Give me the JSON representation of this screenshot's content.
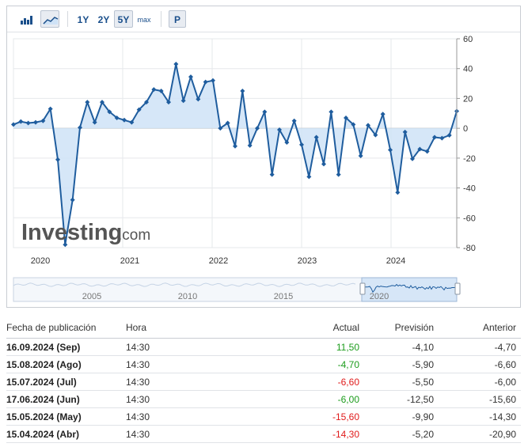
{
  "toolbar": {
    "ranges": [
      "1Y",
      "2Y",
      "5Y",
      "max"
    ],
    "active_range": "5Y",
    "p_button": "P",
    "bar_icon": "bar-chart-icon",
    "line_icon": "area-chart-icon"
  },
  "watermark": {
    "brand": "Investing",
    "suffix": ".com"
  },
  "colors": {
    "line": "#1f5d9e",
    "fill": "#cfe3f7",
    "positive": "#1c9c1c",
    "negative": "#e01b1b",
    "grid": "#e6e8eb"
  },
  "chart_data": {
    "type": "area",
    "xlabels": [
      "2020",
      "2021",
      "2022",
      "2023",
      "2024"
    ],
    "ylim": [
      -80,
      60
    ],
    "yticks": [
      60,
      40,
      20,
      0,
      -20,
      -40,
      -60,
      -80
    ],
    "series": [
      {
        "values": [
          2.5,
          4.5,
          3.5,
          4,
          5,
          13,
          -21,
          -78,
          -48,
          0.5,
          17.5,
          4,
          17.5,
          11,
          7,
          5.5,
          4,
          12.5,
          17.5,
          26,
          25,
          17.5,
          43,
          18.5,
          34.5,
          19.5,
          31,
          32,
          0,
          3.5,
          -12,
          25,
          -11.5,
          0,
          11,
          -31,
          -1,
          -9.5,
          5,
          -11,
          -32.5,
          -6,
          -24,
          11,
          -31,
          7,
          2.5,
          -18.5,
          2,
          -4.5,
          9.5,
          -14.5,
          -43,
          -2.5,
          -20.5,
          -14,
          -15.5,
          -6,
          -6.6,
          -4.7,
          11.5
        ]
      }
    ],
    "navigator": {
      "labels": [
        "2005",
        "2010",
        "2015",
        "2020"
      ]
    }
  },
  "table": {
    "headers": {
      "date": "Fecha de publicación",
      "time": "Hora",
      "actual": "Actual",
      "forecast": "Previsión",
      "previous": "Anterior"
    },
    "rows": [
      {
        "date": "16.09.2024 (Sep)",
        "time": "14:30",
        "actual": "11,50",
        "forecast": "-4,10",
        "previous": "-4,70",
        "status": "positive"
      },
      {
        "date": "15.08.2024 (Ago)",
        "time": "14:30",
        "actual": "-4,70",
        "forecast": "-5,90",
        "previous": "-6,60",
        "status": "positive"
      },
      {
        "date": "15.07.2024 (Jul)",
        "time": "14:30",
        "actual": "-6,60",
        "forecast": "-5,50",
        "previous": "-6,00",
        "status": "negative"
      },
      {
        "date": "17.06.2024 (Jun)",
        "time": "14:30",
        "actual": "-6,00",
        "forecast": "-12,50",
        "previous": "-15,60",
        "status": "positive"
      },
      {
        "date": "15.05.2024 (May)",
        "time": "14:30",
        "actual": "-15,60",
        "forecast": "-9,90",
        "previous": "-14,30",
        "status": "negative"
      },
      {
        "date": "15.04.2024 (Abr)",
        "time": "14:30",
        "actual": "-14,30",
        "forecast": "-5,20",
        "previous": "-20,90",
        "status": "negative"
      }
    ]
  }
}
